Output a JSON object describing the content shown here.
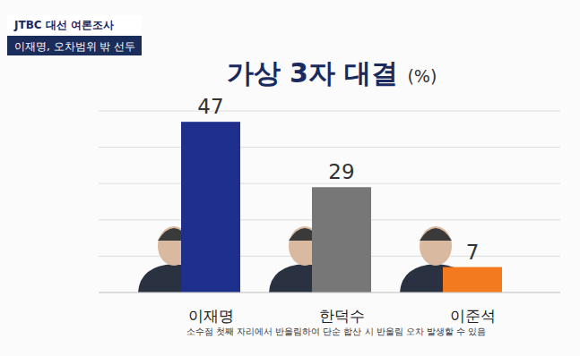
{
  "chart_data": {
    "type": "bar",
    "header": "JTBC 대선 여론조사",
    "subtitle": "이재명, 오차범위 밖 선두",
    "title": "가상 3자 대결",
    "ylabel": "(%)",
    "note": "소수점 첫째 자리에서 반올림하여 단순 합산 시 반올림 오차 발생할 수 있음",
    "categories": [
      "이재명",
      "한덕수",
      "이준석"
    ],
    "values": [
      47,
      29,
      7
    ],
    "colors": [
      "#1f2f8c",
      "#777777",
      "#f47a1f"
    ],
    "ylim": [
      0,
      50
    ],
    "yticks": [
      0,
      10,
      20,
      30,
      40,
      50
    ],
    "grid": true,
    "tick_labels": false,
    "data_labels": true
  }
}
